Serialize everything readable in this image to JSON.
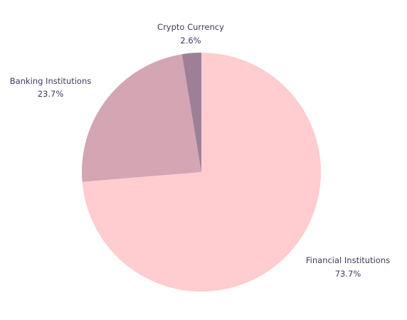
{
  "chart_data": {
    "type": "pie",
    "start_angle_deg": 0,
    "direction": "clockwise",
    "legend": "none",
    "slices": [
      {
        "label": "Financial Institutions",
        "value": 73.7,
        "display": "73.7%",
        "color": "#ffccd0"
      },
      {
        "label": "Banking Institutions",
        "value": 23.7,
        "display": "23.7%",
        "color": "#d4a5b3"
      },
      {
        "label": "Crypto Currency",
        "value": 2.6,
        "display": "2.6%",
        "color": "#9e7f98"
      }
    ]
  }
}
